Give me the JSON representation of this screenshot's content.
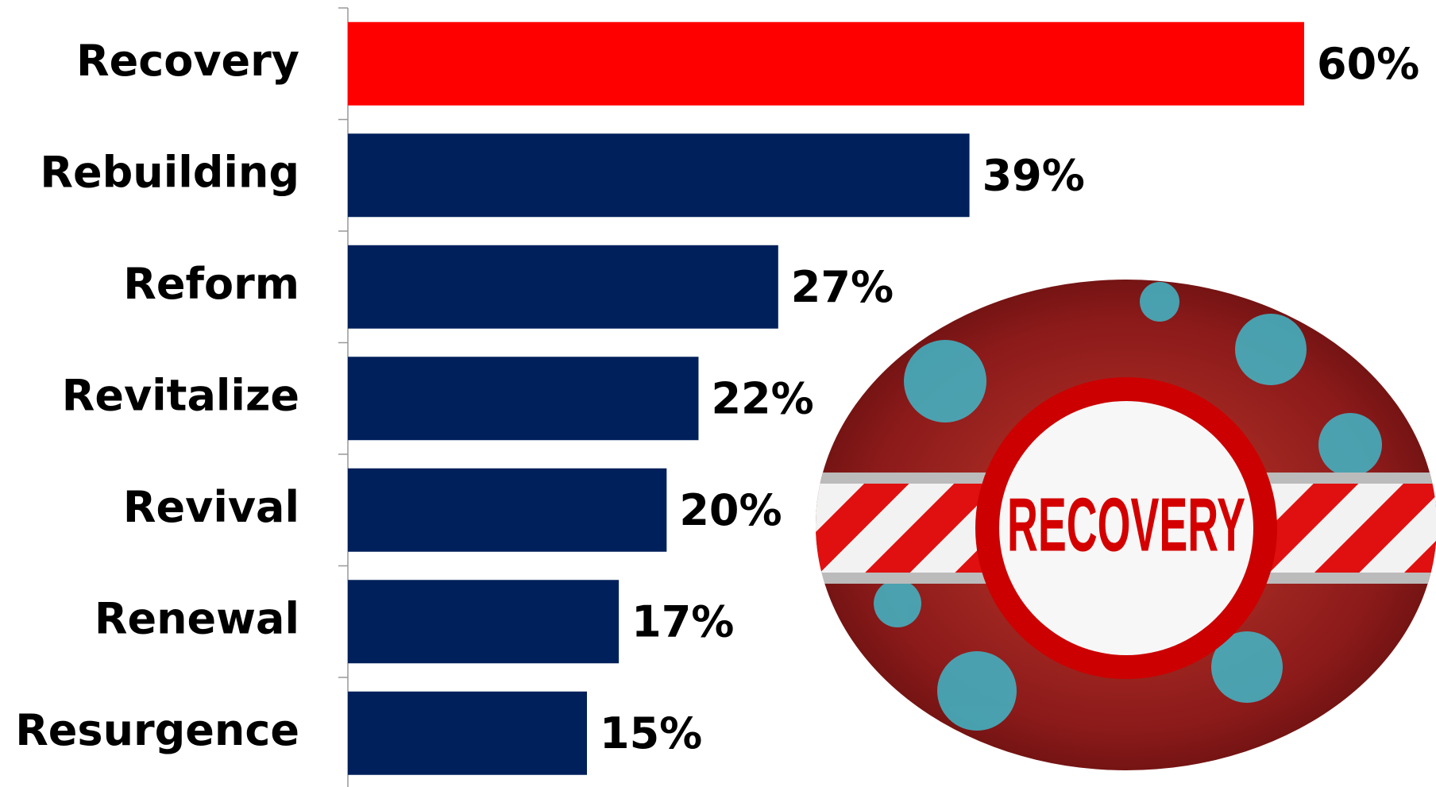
{
  "chart_data": {
    "type": "hbar",
    "categories": [
      "Recovery",
      "Rebuilding",
      "Reform",
      "Revitalize",
      "Revival",
      "Renewal",
      "Resurgence"
    ],
    "values": [
      60,
      39,
      27,
      22,
      20,
      17,
      15
    ],
    "value_labels": [
      "60%",
      "39%",
      "27%",
      "22%",
      "20%",
      "17%",
      "15%"
    ],
    "colors": [
      "#ff0000",
      "#00205b",
      "#00205b",
      "#00205b",
      "#00205b",
      "#00205b",
      "#00205b"
    ],
    "image_label": "RECOVERY"
  }
}
